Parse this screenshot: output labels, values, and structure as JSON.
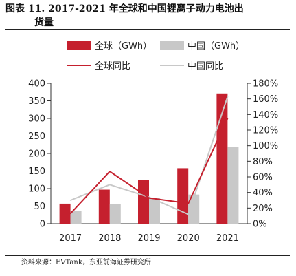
{
  "figure": {
    "title_line1": "图表 11. 2017-2021 年全球和中国锂离子动力电池出",
    "title_line2": "货量",
    "source": "资料来源：EVTank，东亚前海证券研究所"
  },
  "chart_data": {
    "type": "bar",
    "categories": [
      "2017",
      "2018",
      "2019",
      "2020",
      "2021"
    ],
    "series": [
      {
        "name": "全球（GWh）",
        "kind": "bar",
        "axis": "left",
        "color": "#c5202e",
        "values": [
          57,
          97,
          124,
          158,
          371
        ]
      },
      {
        "name": "中国（GWh）",
        "kind": "bar",
        "axis": "left",
        "color": "#c8c8c8",
        "values": [
          37,
          56,
          74,
          83,
          219
        ]
      },
      {
        "name": "全球同比",
        "kind": "line",
        "axis": "right",
        "color": "#c5202e",
        "values": [
          0.13,
          0.67,
          0.33,
          0.26,
          1.35
        ]
      },
      {
        "name": "中国同比",
        "kind": "line",
        "axis": "right",
        "color": "#c8c8c8",
        "values": [
          0.3,
          0.5,
          0.34,
          0.12,
          1.63
        ]
      }
    ],
    "y_left": {
      "min": 0,
      "max": 400,
      "ticks": [
        "0",
        "50",
        "100",
        "150",
        "200",
        "250",
        "300",
        "350",
        "400"
      ]
    },
    "y_right": {
      "min": 0,
      "max": 1.8,
      "ticks": [
        "0%",
        "20%",
        "40%",
        "60%",
        "80%",
        "100%",
        "120%",
        "140%",
        "160%",
        "180%"
      ]
    },
    "grid": false,
    "legend_position": "top"
  }
}
